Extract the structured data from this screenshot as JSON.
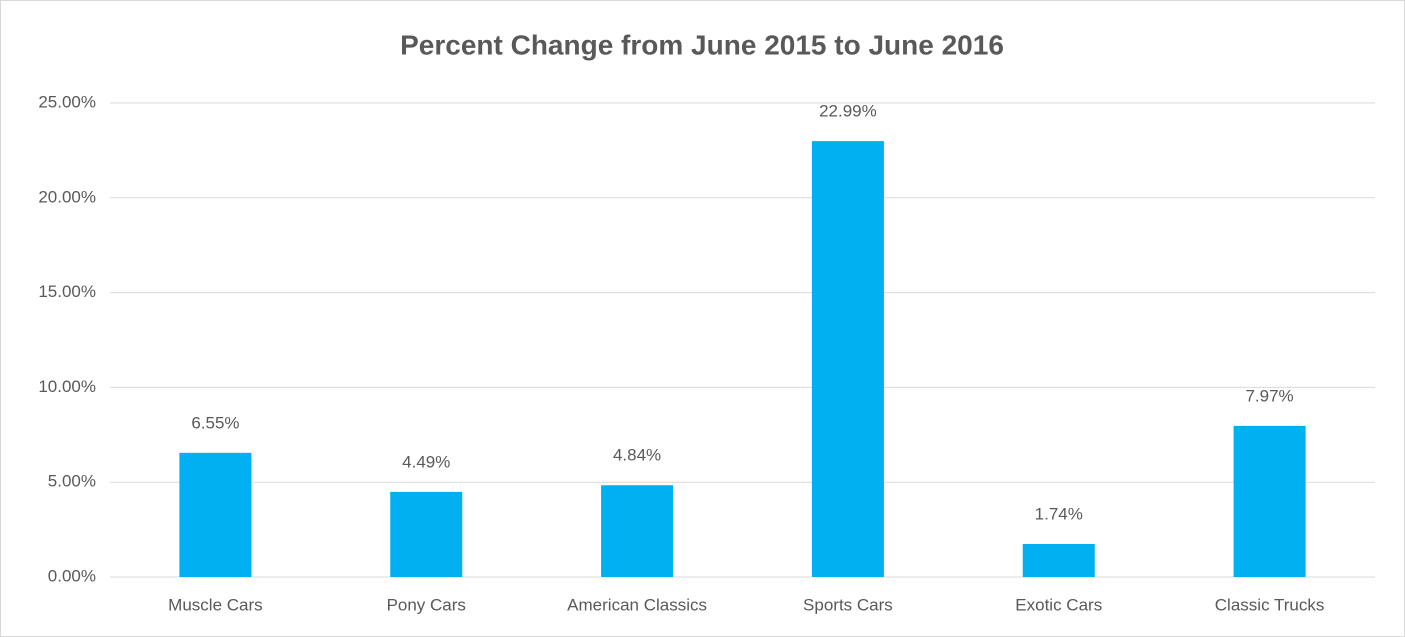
{
  "chart_data": {
    "type": "bar",
    "title": "Percent Change from June 2015 to June 2016",
    "categories": [
      "Muscle Cars",
      "Pony Cars",
      "American Classics",
      "Sports Cars",
      "Exotic Cars",
      "Classic Trucks"
    ],
    "values": [
      6.55,
      4.49,
      4.84,
      22.99,
      1.74,
      7.97
    ],
    "value_labels": [
      "6.55%",
      "4.49%",
      "4.84%",
      "22.99%",
      "1.74%",
      "7.97%"
    ],
    "color": "#00b0f0",
    "ylim": [
      0,
      25
    ],
    "yticks": [
      {
        "value": 0,
        "label": "0.00%"
      },
      {
        "value": 5,
        "label": "5.00%"
      },
      {
        "value": 10,
        "label": "10.00%"
      },
      {
        "value": 15,
        "label": "15.00%"
      },
      {
        "value": 20,
        "label": "20.00%"
      },
      {
        "value": 25,
        "label": "25.00%"
      }
    ],
    "grid": true
  }
}
